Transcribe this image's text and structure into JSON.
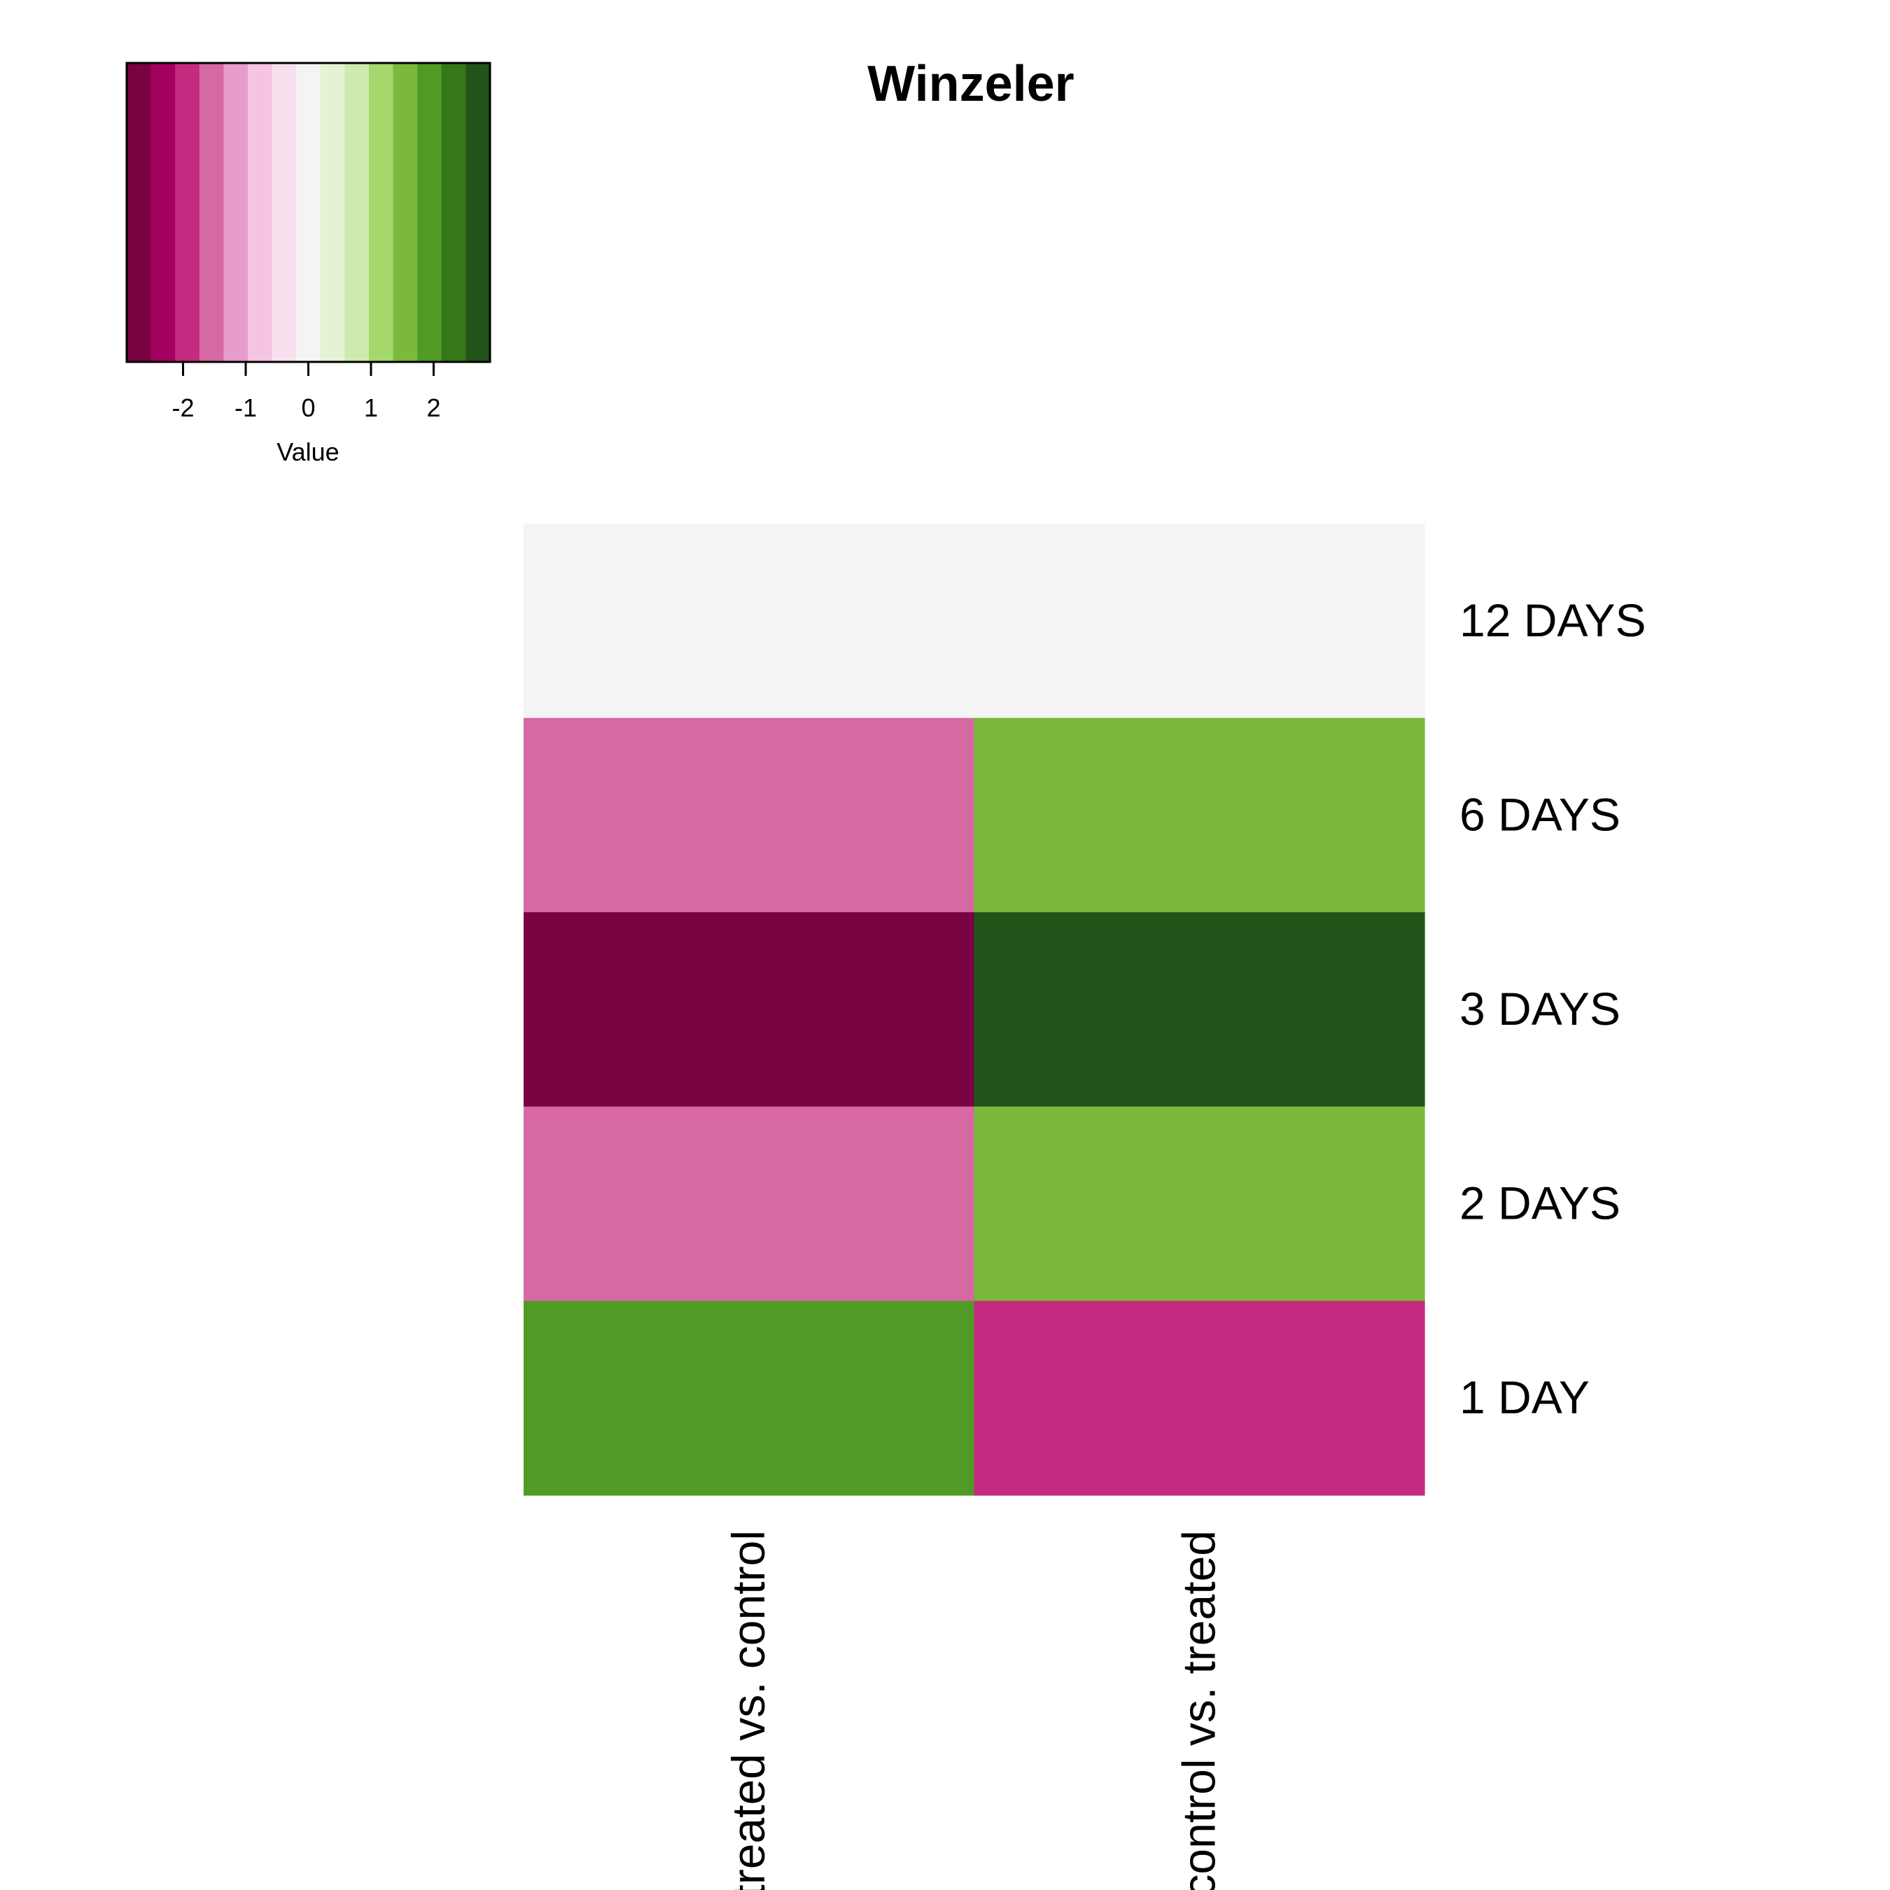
{
  "chart_data": {
    "type": "heatmap",
    "title": "Winzeler",
    "rows": [
      "12 DAYS",
      "6 DAYS",
      "3 DAYS",
      "2 DAYS",
      "1 DAY"
    ],
    "columns": [
      "treated vs. control",
      "control vs. treated"
    ],
    "values": [
      [
        0.0,
        0.0
      ],
      [
        -1.5,
        1.5
      ],
      [
        -2.8,
        2.8
      ],
      [
        -1.5,
        1.5
      ],
      [
        1.8,
        -1.8
      ]
    ],
    "color_key": {
      "label": "Value",
      "range": [
        -2.9,
        2.9
      ],
      "ticks": [
        "-2",
        "-1",
        "0",
        "1",
        "2"
      ],
      "tick_values": [
        -2,
        -1,
        0,
        1,
        2
      ],
      "colors": [
        "#7a0142",
        "#a3005f",
        "#c42a7f",
        "#d668a3",
        "#e79ccb",
        "#f5c4e1",
        "#f8e0ee",
        "#f4f4f4",
        "#e4f3d4",
        "#cdebaf",
        "#a4d86d",
        "#7ab93b",
        "#529a26",
        "#367717",
        "#225419"
      ]
    },
    "grid": false,
    "legend_position": "top-left"
  }
}
